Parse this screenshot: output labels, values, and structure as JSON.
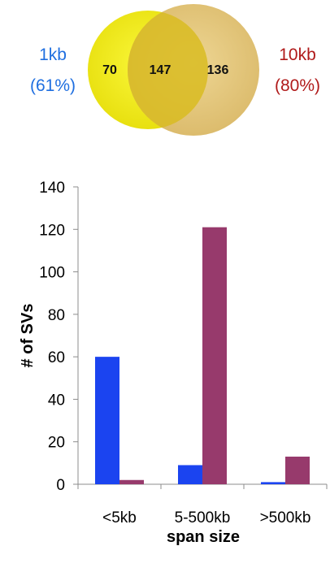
{
  "venn": {
    "left_set": {
      "label": "1kb",
      "percent": "(61%)",
      "color": "#1f6fe0"
    },
    "right_set": {
      "label": "10kb",
      "percent": "(80%)",
      "color": "#b01a1a"
    },
    "counts": {
      "left_only": "70",
      "both": "147",
      "right_only": "136"
    },
    "fill_colors": {
      "left": "#f2ee1e",
      "right": "#e2c271",
      "overlap": "#dcc02a"
    }
  },
  "chart_data": {
    "type": "bar",
    "categories": [
      "<5kb",
      "5-500kb",
      ">500kb"
    ],
    "series": [
      {
        "values": [
          60,
          9,
          1
        ],
        "color": "#1b44f0"
      },
      {
        "values": [
          2,
          121,
          13
        ],
        "color": "#973a6c"
      }
    ],
    "xlabel": "span size",
    "ylabel": "# of SVs",
    "ylim": [
      0,
      140
    ],
    "yticks": [
      0,
      20,
      40,
      60,
      80,
      100,
      120,
      140
    ],
    "grid": false,
    "legend": "none"
  }
}
